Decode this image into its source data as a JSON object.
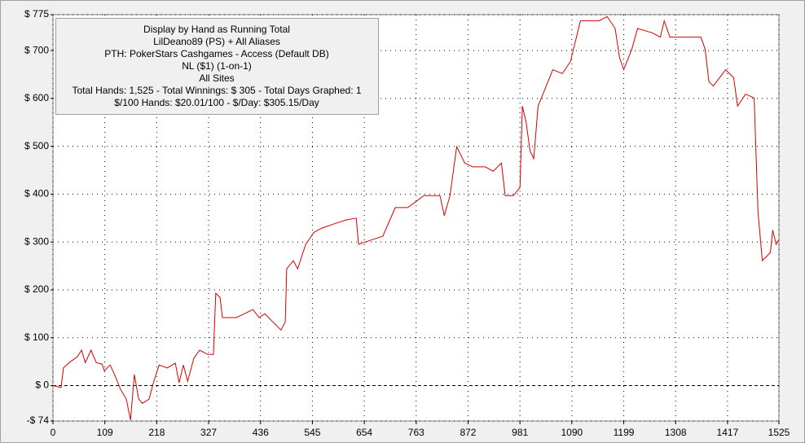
{
  "chart_data": {
    "type": "line",
    "annotations": [
      "Display by Hand as Running Total",
      "LilDeano89 (PS) + All Aliases",
      "PTH: PokerStars Cashgames - Access (Default DB)",
      "NL ($1) (1-on-1)",
      "All Sites",
      "Total Hands: 1,525 - Total Winnings: $ 305 - Total Days Graphed: 1",
      "$/100 Hands: $20.01/100 - $/Day: $305.15/Day"
    ],
    "x": [
      0,
      17,
      22,
      34,
      51,
      60,
      68,
      80,
      91,
      103,
      108,
      120,
      128,
      142,
      154,
      163,
      171,
      180,
      188,
      202,
      211,
      223,
      240,
      257,
      265,
      274,
      283,
      296,
      308,
      325,
      337,
      342,
      351,
      356,
      385,
      402,
      420,
      433,
      445,
      462,
      479,
      488,
      491,
      505,
      514,
      531,
      548,
      565,
      591,
      616,
      637,
      642,
      668,
      693,
      719,
      745,
      762,
      779,
      813,
      822,
      834,
      848,
      865,
      882,
      908,
      925,
      942,
      950,
      967,
      981,
      986,
      994,
      1002,
      1010,
      1019,
      1033,
      1050,
      1070,
      1087,
      1108,
      1130,
      1147,
      1164,
      1181,
      1190,
      1199,
      1216,
      1228,
      1259,
      1276,
      1284,
      1296,
      1327,
      1361,
      1370,
      1378,
      1387,
      1413,
      1430,
      1438,
      1455,
      1473,
      1481,
      1490,
      1507,
      1512,
      1519,
      1525
    ],
    "series": [
      {
        "color": "#d40000",
        "values": [
          0,
          -4,
          37,
          48,
          60,
          74,
          48,
          74,
          48,
          45,
          31,
          43,
          26,
          -8,
          -28,
          -72,
          23,
          -28,
          -37,
          -28,
          6,
          43,
          37,
          47,
          6,
          43,
          9,
          57,
          74,
          65,
          65,
          193,
          184,
          142,
          142,
          150,
          159,
          142,
          150,
          133,
          116,
          133,
          244,
          261,
          244,
          295,
          320,
          329,
          338,
          346,
          350,
          295,
          304,
          312,
          372,
          372,
          384,
          397,
          397,
          355,
          397,
          499,
          465,
          457,
          457,
          448,
          465,
          397,
          397,
          414,
          584,
          550,
          491,
          474,
          584,
          618,
          660,
          652,
          677,
          762,
          762,
          762,
          771,
          746,
          686,
          660,
          703,
          746,
          737,
          728,
          762,
          728,
          728,
          728,
          703,
          635,
          626,
          660,
          643,
          584,
          609,
          601,
          363,
          261,
          278,
          325,
          295,
          305
        ]
      }
    ],
    "xlim": [
      0,
      1525
    ],
    "ylim": [
      -74,
      775
    ],
    "xticks": [
      0,
      109,
      218,
      327,
      436,
      545,
      654,
      763,
      872,
      981,
      1090,
      1199,
      1308,
      1417,
      1525
    ],
    "yticks": [
      {
        "value": -74,
        "label": "-$ 74"
      },
      {
        "value": 0,
        "label": "$ 0"
      },
      {
        "value": 100,
        "label": "$ 100"
      },
      {
        "value": 200,
        "label": "$ 200"
      },
      {
        "value": 300,
        "label": "$ 300"
      },
      {
        "value": 400,
        "label": "$ 400"
      },
      {
        "value": 500,
        "label": "$ 500"
      },
      {
        "value": 600,
        "label": "$ 600"
      },
      {
        "value": 700,
        "label": "$ 700"
      },
      {
        "value": 775,
        "label": "$ 775"
      }
    ],
    "grid": true
  }
}
